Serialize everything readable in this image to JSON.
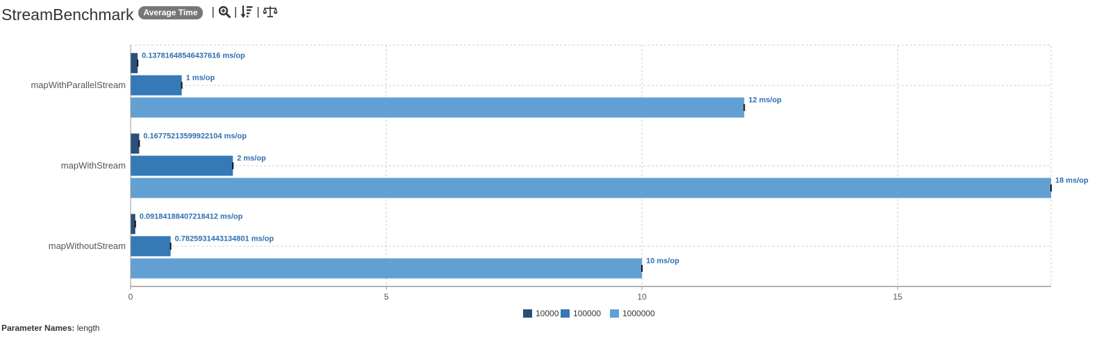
{
  "header": {
    "title": "StreamBenchmark",
    "mode_badge": "Average Time",
    "separators": [
      "|",
      "|",
      "|"
    ],
    "tools": [
      "zoom-icon",
      "sort-icon",
      "balance-icon"
    ]
  },
  "chart_data": {
    "type": "bar",
    "orientation": "horizontal",
    "categories": [
      "mapWithParallelStream",
      "mapWithStream",
      "mapWithoutStream"
    ],
    "series": [
      {
        "name": "10000",
        "color": "#2a4f7a",
        "values": [
          0.13781648546437616,
          0.16775213599922104,
          0.09184188407218412
        ]
      },
      {
        "name": "100000",
        "color": "#3579b6",
        "values": [
          1,
          2,
          0.7825931443134801
        ]
      },
      {
        "name": "1000000",
        "color": "#62a0d4",
        "values": [
          12,
          18,
          10
        ]
      }
    ],
    "data_labels": [
      [
        "0.13781648546437616 ms/op",
        "1 ms/op",
        "12 ms/op"
      ],
      [
        "0.16775213599922104 ms/op",
        "2 ms/op",
        "18 ms/op"
      ],
      [
        "0.09184188407218412 ms/op",
        "0.7825931443134801 ms/op",
        "10 ms/op"
      ]
    ],
    "xticks": [
      "0",
      "5",
      "10",
      "15"
    ],
    "xtick_values": [
      0,
      5,
      10,
      15
    ],
    "xlim": [
      0,
      18
    ],
    "grid": true,
    "legend": "bottom-center",
    "label_color": "#2e6fb0"
  },
  "footer": {
    "param_label": "Parameter Names:",
    "param_value": "length"
  }
}
